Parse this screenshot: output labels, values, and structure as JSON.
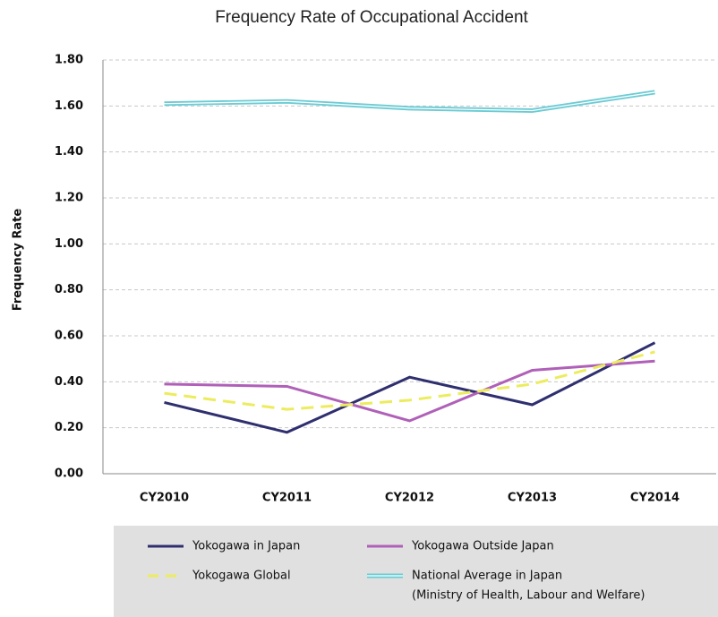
{
  "chart_data": {
    "type": "line",
    "title": "Frequency Rate of Occupational Accident",
    "y_label": "Frequency Rate",
    "categories": [
      "CY2010",
      "CY2011",
      "CY2012",
      "CY2013",
      "CY2014"
    ],
    "series": [
      {
        "name": "Yokogawa in Japan",
        "color": "#2f2f6f",
        "values": [
          0.31,
          0.18,
          0.42,
          0.3,
          0.57
        ]
      },
      {
        "name": "Yokogawa Outside Japan",
        "color": "#b060b8",
        "values": [
          0.39,
          0.38,
          0.23,
          0.45,
          0.49
        ]
      },
      {
        "name": "Yokogawa Global",
        "color": "#ecec5e",
        "dashed": true,
        "values": [
          0.35,
          0.28,
          0.32,
          0.39,
          0.53
        ]
      },
      {
        "name": "National Average in Japan",
        "color": "#6ccbd4",
        "double": true,
        "values": [
          1.61,
          1.62,
          1.59,
          1.58,
          1.66
        ]
      }
    ],
    "legend_note": "(Ministry of Health, Labour and Welfare)",
    "ylim": [
      0,
      1.8
    ],
    "yticks": [
      {
        "value": 0,
        "label": "0.00"
      },
      {
        "value": 0.2,
        "label": "0.20"
      },
      {
        "value": 0.4,
        "label": "0.40"
      },
      {
        "value": 0.6,
        "label": "0.60"
      },
      {
        "value": 0.8,
        "label": "0.80"
      },
      {
        "value": 1.0,
        "label": "1.00"
      },
      {
        "value": 1.2,
        "label": "1.20"
      },
      {
        "value": 1.4,
        "label": "1.40"
      },
      {
        "value": 1.6,
        "label": "1.60"
      },
      {
        "value": 1.8,
        "label": "1.80"
      }
    ],
    "grid": true
  }
}
